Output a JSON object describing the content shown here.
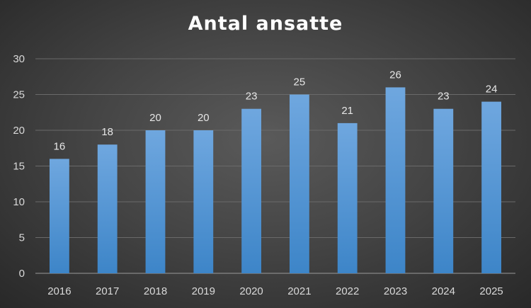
{
  "chart_data": {
    "type": "bar",
    "title": "Antal ansatte",
    "categories": [
      "2016",
      "2017",
      "2018",
      "2019",
      "2020",
      "2021",
      "2022",
      "2023",
      "2024",
      "2025"
    ],
    "values": [
      16,
      18,
      20,
      20,
      23,
      25,
      21,
      26,
      23,
      24
    ],
    "ylim": [
      0,
      30
    ],
    "yticks": [
      0,
      5,
      10,
      15,
      20,
      25,
      30
    ],
    "grid": true,
    "data_labels": true,
    "legend": "none",
    "colors": {
      "bar_top": "#6fa7df",
      "bar_bottom": "#3d85c8",
      "grid": "#6a6a6a",
      "axis": "#9a9a9a"
    }
  }
}
